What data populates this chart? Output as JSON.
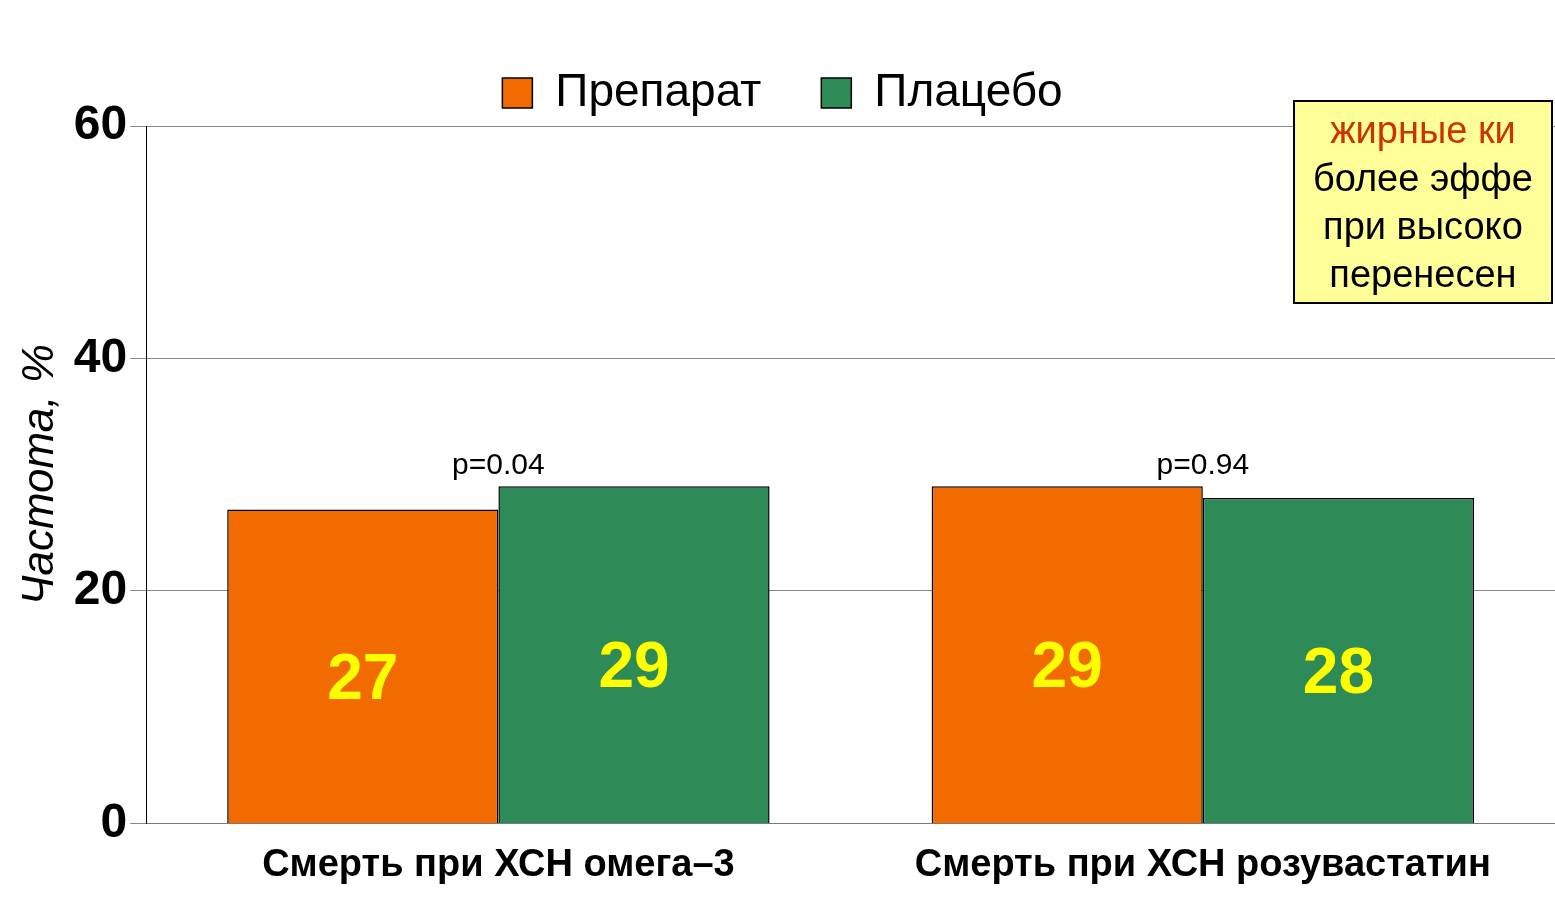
{
  "chart_data": {
    "type": "bar",
    "ylabel": "Частота, %",
    "categories": [
      "Смерть при ХСН омега–3",
      "Смерть при ХСН розувастатин"
    ],
    "series": [
      {
        "name": "Препарат",
        "color": "#f26b00",
        "values": [
          27,
          29
        ]
      },
      {
        "name": "Плацебо",
        "color": "#2e8b57",
        "values": [
          29,
          28
        ]
      }
    ],
    "ylim": [
      0,
      60
    ],
    "yticks": [
      0,
      20,
      40,
      60
    ],
    "grid": "y",
    "legend": "top",
    "data_labels": true,
    "annotations": [
      {
        "text": "p=0.04",
        "x": "Смерть при ХСН омега–3",
        "y": 29
      },
      {
        "text": "p=0.94",
        "x": "Смерть при ХСН розувастатин",
        "y": 29
      },
      "жирные ки",
      "более эффе",
      "при высоко",
      "перенесен"
    ]
  }
}
